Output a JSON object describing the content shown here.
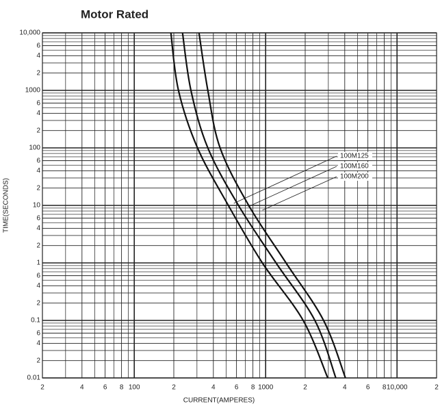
{
  "chart_data": {
    "type": "line",
    "title": "Motor Rated",
    "xlabel": "CURRENT(AMPERES)",
    "ylabel": "TIME(SECONDS)",
    "xscale": "log",
    "yscale": "log",
    "grid": true,
    "xlim": [
      20,
      20000
    ],
    "ylim": [
      0.01,
      10000
    ],
    "xticks": [
      {
        "value": 20,
        "label": "2"
      },
      {
        "value": 40,
        "label": "4"
      },
      {
        "value": 60,
        "label": "6"
      },
      {
        "value": 80,
        "label": "8"
      },
      100,
      {
        "value": 200,
        "label": "2"
      },
      {
        "value": 400,
        "label": "4"
      },
      {
        "value": 600,
        "label": "6"
      },
      {
        "value": 800,
        "label": "8"
      },
      1000,
      {
        "value": 2000,
        "label": "2"
      },
      {
        "value": 4000,
        "label": "4"
      },
      {
        "value": 6000,
        "label": "6"
      },
      {
        "value": 8000,
        "label": "8"
      },
      {
        "value": 10000,
        "label": "10,000"
      },
      {
        "value": 20000,
        "label": "2"
      }
    ],
    "xminor_ticks": [
      30,
      50,
      70,
      90,
      300,
      500,
      700,
      900,
      3000,
      5000,
      7000,
      9000
    ],
    "yticks": [
      {
        "value": 10000,
        "label": "10,000"
      },
      {
        "value": 6000,
        "label": "6"
      },
      {
        "value": 4000,
        "label": "4"
      },
      {
        "value": 2000,
        "label": "2"
      },
      1000,
      {
        "value": 600,
        "label": "6"
      },
      {
        "value": 400,
        "label": "4"
      },
      {
        "value": 200,
        "label": "2"
      },
      100,
      {
        "value": 60,
        "label": "6"
      },
      {
        "value": 40,
        "label": "4"
      },
      {
        "value": 20,
        "label": "2"
      },
      10,
      {
        "value": 6,
        "label": "6"
      },
      {
        "value": 4,
        "label": "4"
      },
      {
        "value": 2,
        "label": "2"
      },
      1,
      {
        "value": 0.6,
        "label": "6"
      },
      {
        "value": 0.4,
        "label": "4"
      },
      {
        "value": 0.2,
        "label": "2"
      },
      0.1,
      {
        "value": 0.06,
        "label": "6"
      },
      {
        "value": 0.04,
        "label": "4"
      },
      {
        "value": 0.02,
        "label": "2"
      },
      0.01
    ],
    "yminor_ticks": [
      3000,
      5000,
      7000,
      8000,
      9000,
      300,
      500,
      700,
      800,
      900,
      30,
      50,
      70,
      80,
      90,
      3,
      5,
      7,
      8,
      9,
      0.3,
      0.5,
      0.7,
      0.8,
      0.9,
      0.03,
      0.05,
      0.07,
      0.08,
      0.09
    ],
    "series": [
      {
        "name": "100M125",
        "color": "#111111",
        "x": [
          190,
          217,
          303,
          520,
          944,
          1930,
          2970
        ],
        "values": [
          10000,
          1000,
          100,
          10,
          1,
          0.1,
          0.01
        ]
      },
      {
        "name": "100M160",
        "color": "#111111",
        "x": [
          233,
          270,
          363,
          621,
          1200,
          2370,
          3420
        ],
        "values": [
          10000,
          1000,
          100,
          10,
          1,
          0.1,
          0.01
        ]
      },
      {
        "name": "100M200",
        "color": "#111111",
        "x": [
          311,
          363,
          450,
          743,
          1430,
          2760,
          4050
        ],
        "values": [
          10000,
          1000,
          100,
          10,
          1,
          0.1,
          0.01
        ]
      }
    ]
  }
}
